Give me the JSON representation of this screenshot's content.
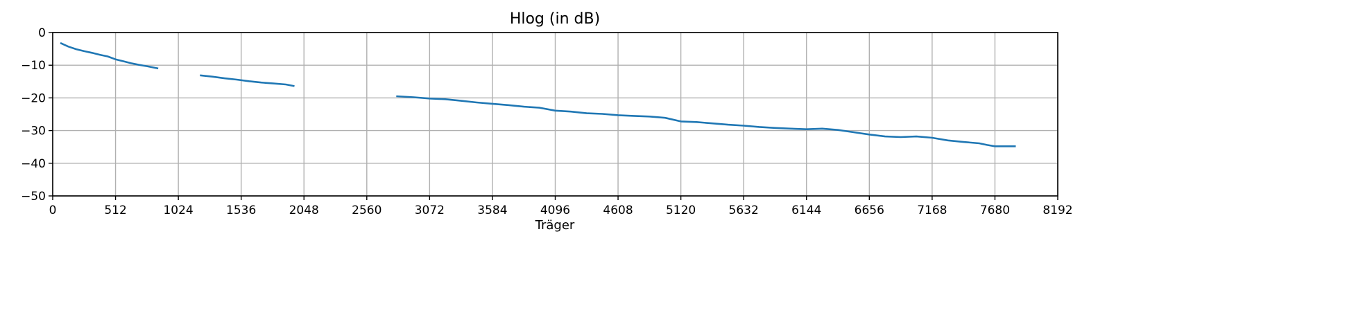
{
  "chart_data": {
    "type": "line",
    "title": "Hlog (in dB)",
    "xlabel": "Träger",
    "ylabel": "",
    "xlim": [
      0,
      8192
    ],
    "ylim": [
      -50,
      0
    ],
    "xticks": [
      0,
      512,
      1024,
      1536,
      2048,
      2560,
      3072,
      3584,
      4096,
      4608,
      5120,
      5632,
      6144,
      6656,
      7168,
      7680,
      8192
    ],
    "yticks": [
      0,
      -10,
      -20,
      -30,
      -40,
      -50
    ],
    "grid": true,
    "line_color": "#1f77b4",
    "segments": [
      {
        "x": [
          62,
          128,
          192,
          256,
          320,
          384,
          448,
          512,
          576,
          640,
          704,
          768,
          860
        ],
        "y": [
          -3.2,
          -4.3,
          -5.1,
          -5.7,
          -6.2,
          -6.8,
          -7.3,
          -8.2,
          -8.8,
          -9.4,
          -9.9,
          -10.3,
          -11.0
        ]
      },
      {
        "x": [
          1200,
          1300,
          1400,
          1500,
          1600,
          1700,
          1800,
          1900,
          1970
        ],
        "y": [
          -13.1,
          -13.5,
          -14.0,
          -14.4,
          -14.9,
          -15.3,
          -15.6,
          -15.9,
          -16.4
        ]
      },
      {
        "x": [
          2800,
          2944,
          3072,
          3200,
          3328,
          3456,
          3584,
          3712,
          3840,
          3968,
          4096,
          4224,
          4352,
          4480,
          4608,
          4736,
          4864,
          4992,
          5120,
          5248,
          5376,
          5504,
          5632,
          5760,
          5888,
          6016,
          6144,
          6272,
          6400,
          6528,
          6656,
          6784,
          6912,
          7040,
          7168,
          7296,
          7424,
          7552,
          7616,
          7680,
          7850
        ],
        "y": [
          -19.5,
          -19.8,
          -20.2,
          -20.4,
          -20.9,
          -21.4,
          -21.8,
          -22.2,
          -22.7,
          -23.0,
          -23.9,
          -24.2,
          -24.7,
          -24.9,
          -25.3,
          -25.5,
          -25.7,
          -26.1,
          -27.2,
          -27.4,
          -27.8,
          -28.2,
          -28.5,
          -28.9,
          -29.2,
          -29.4,
          -29.6,
          -29.4,
          -29.8,
          -30.5,
          -31.2,
          -31.8,
          -32.0,
          -31.8,
          -32.2,
          -33.0,
          -33.5,
          -33.9,
          -34.4,
          -34.8,
          -34.8
        ]
      }
    ]
  }
}
